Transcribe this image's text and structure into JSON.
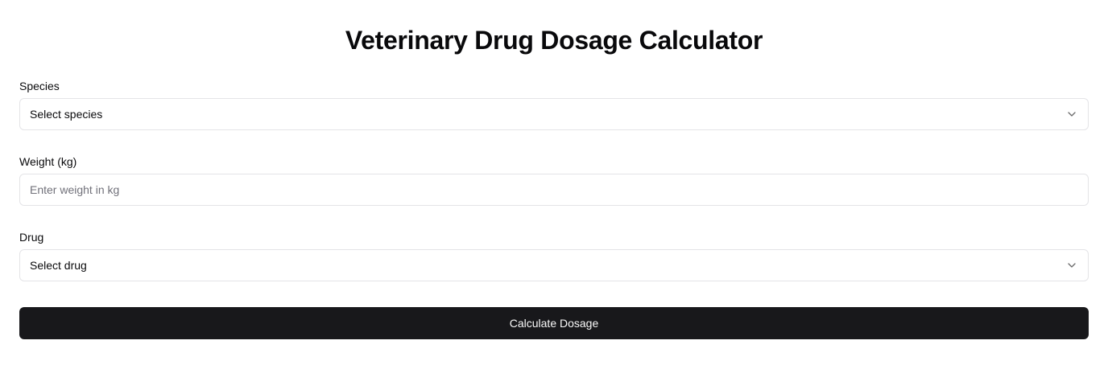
{
  "page": {
    "title": "Veterinary Drug Dosage Calculator"
  },
  "form": {
    "species": {
      "label": "Species",
      "selected_value": "Select species",
      "icon": "chevron-down-icon"
    },
    "weight": {
      "label": "Weight (kg)",
      "value": "",
      "placeholder": "Enter weight in kg"
    },
    "drug": {
      "label": "Drug",
      "selected_value": "Select drug",
      "icon": "chevron-down-icon"
    },
    "submit_label": "Calculate Dosage"
  },
  "colors": {
    "button_background": "#18181b",
    "button_text": "#fafafa",
    "border": "#e4e4e7",
    "placeholder": "#71717a",
    "text": "#09090b"
  }
}
